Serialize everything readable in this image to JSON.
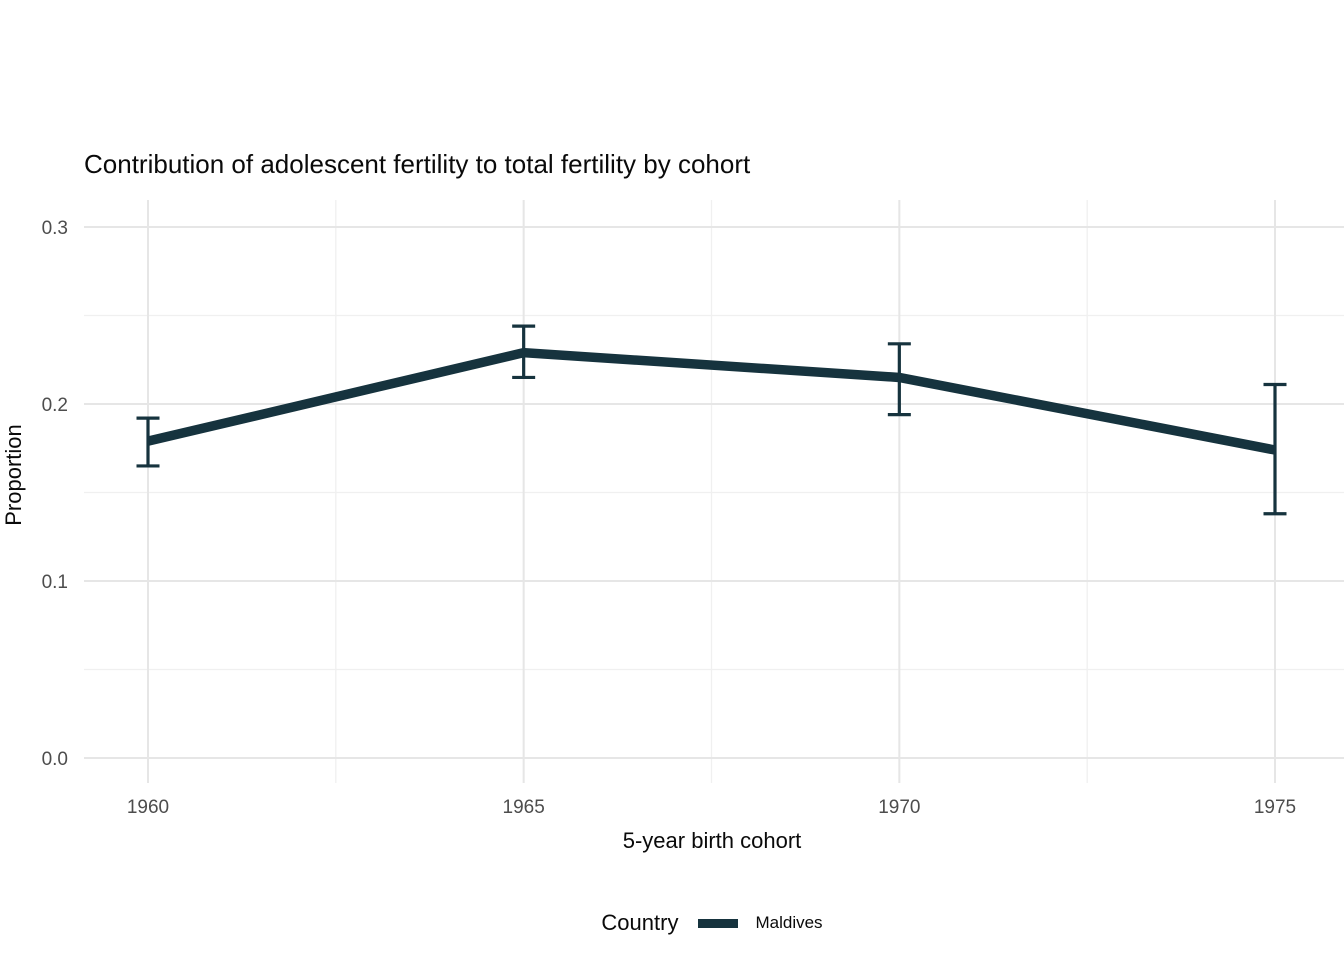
{
  "chart": {
    "title": "Contribution of adolescent fertility to total fertility by cohort",
    "x_axis": {
      "title": "5-year birth cohort",
      "tick_labels": [
        "1960",
        "1965",
        "1970",
        "1975"
      ]
    },
    "y_axis": {
      "title": "Proportion",
      "tick_labels": [
        "0.0",
        "0.1",
        "0.2",
        "0.3"
      ]
    },
    "legend": {
      "title": "Country",
      "entries": [
        {
          "label": "Maldives",
          "color": "#16333e"
        }
      ]
    }
  },
  "chart_data": {
    "type": "line",
    "title": "Contribution of adolescent fertility to total fertility by cohort",
    "xlabel": "5-year birth cohort",
    "ylabel": "Proportion",
    "x": [
      1960,
      1965,
      1970,
      1975
    ],
    "series": [
      {
        "name": "Maldives",
        "color": "#16333e",
        "values": [
          0.179,
          0.229,
          0.215,
          0.174
        ],
        "ci_low": [
          0.165,
          0.215,
          0.194,
          0.138
        ],
        "ci_high": [
          0.192,
          0.244,
          0.234,
          0.211
        ]
      }
    ],
    "error_bars": true,
    "xlim": [
      1960,
      1975
    ],
    "ylim": [
      0.0,
      0.3
    ],
    "x_ticks": [
      1960,
      1965,
      1970,
      1975
    ],
    "y_ticks": [
      0.0,
      0.1,
      0.2,
      0.3
    ],
    "grid": "major+minor",
    "grid_major_color": "#e6e6e6",
    "grid_minor_color": "#f0f0f0",
    "legend_position": "bottom"
  }
}
